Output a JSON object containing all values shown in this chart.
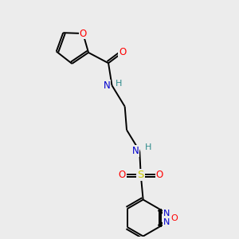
{
  "background_color": "#ececec",
  "bond_color": "#000000",
  "atom_colors": {
    "O": "#ff0000",
    "N": "#0000cd",
    "S": "#cccc00",
    "H": "#2e8b8b",
    "C": "#000000"
  },
  "figsize": [
    3.0,
    3.0
  ],
  "dpi": 100
}
